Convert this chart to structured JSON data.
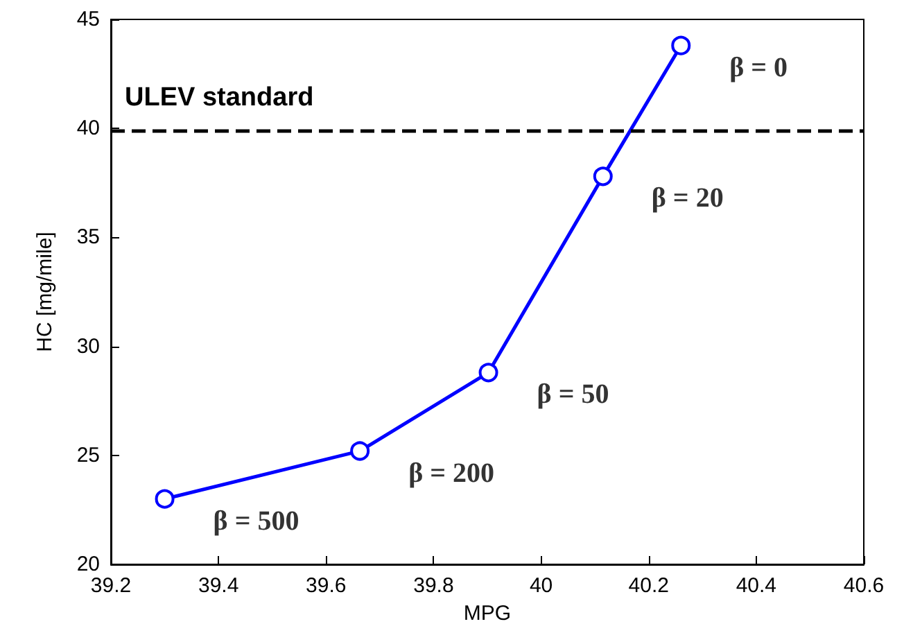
{
  "chart_data": {
    "type": "line",
    "xlabel": "MPG",
    "ylabel": "HC [mg/mile]",
    "x": [
      39.3,
      39.663,
      39.902,
      40.115,
      40.26
    ],
    "series": [
      {
        "color": "#0000ff",
        "values": [
          23.0,
          25.2,
          28.8,
          37.8,
          43.8
        ]
      }
    ],
    "xlim": [
      39.2,
      40.6
    ],
    "xticks": [
      39.2,
      39.4,
      39.6,
      39.8,
      40,
      40.2,
      40.4,
      40.6
    ],
    "ylim": [
      20,
      45
    ],
    "yticks": [
      20,
      25,
      30,
      35,
      40,
      45
    ],
    "grid": false,
    "marker": "circle",
    "line_style": "solid",
    "ref_lines": [
      {
        "axis": "y",
        "value": 39.9,
        "label": "ULEV standard",
        "color": "#000000",
        "line_style": "dashed"
      }
    ],
    "annotations": [
      {
        "text": "β = 500",
        "x": 39.3,
        "y": 23.0
      },
      {
        "text": "β = 200",
        "x": 39.663,
        "y": 25.2
      },
      {
        "text": "β = 50",
        "x": 39.902,
        "y": 28.8
      },
      {
        "text": "β = 20",
        "x": 40.115,
        "y": 37.8
      },
      {
        "text": "β = 0",
        "x": 40.26,
        "y": 43.8
      }
    ]
  }
}
